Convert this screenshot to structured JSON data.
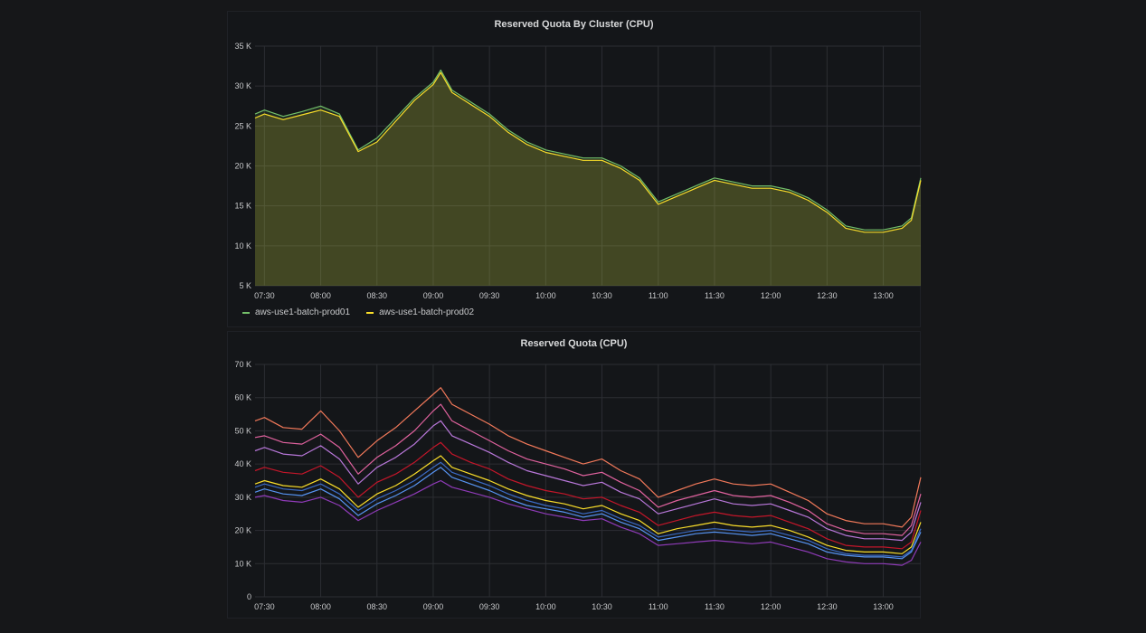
{
  "chart_data": [
    {
      "type": "area",
      "title": "Reserved Quota By Cluster (CPU)",
      "xlabel": "",
      "ylabel": "",
      "x_ticks": [
        "07:30",
        "08:00",
        "08:30",
        "09:00",
        "09:30",
        "10:00",
        "10:30",
        "11:00",
        "11:30",
        "12:00",
        "12:30",
        "13:00"
      ],
      "y_ticks": [
        "5 K",
        "10 K",
        "15 K",
        "20 K",
        "25 K",
        "30 K",
        "35 K"
      ],
      "xlim": [
        "07:25",
        "13:20"
      ],
      "ylim": [
        5000,
        35000
      ],
      "grid": true,
      "legend_position": "bottom-left",
      "x": [
        "07:25",
        "07:30",
        "07:40",
        "07:50",
        "08:00",
        "08:10",
        "08:20",
        "08:30",
        "08:40",
        "08:50",
        "09:00",
        "09:04",
        "09:10",
        "09:20",
        "09:30",
        "09:40",
        "09:50",
        "10:00",
        "10:10",
        "10:20",
        "10:30",
        "10:40",
        "10:50",
        "11:00",
        "11:10",
        "11:20",
        "11:30",
        "11:40",
        "11:50",
        "12:00",
        "12:10",
        "12:20",
        "12:30",
        "12:40",
        "12:50",
        "13:00",
        "13:10",
        "13:15",
        "13:20"
      ],
      "series": [
        {
          "name": "aws-use1-batch-prod01",
          "color": "#73bf69",
          "values": [
            26500,
            27000,
            26200,
            26800,
            27500,
            26500,
            22000,
            23500,
            26000,
            28500,
            30500,
            32000,
            29500,
            28000,
            26500,
            24500,
            23000,
            22000,
            21500,
            21000,
            21000,
            20000,
            18500,
            15500,
            16500,
            17500,
            18500,
            18000,
            17500,
            17500,
            17000,
            16000,
            14500,
            12500,
            12000,
            12000,
            12500,
            13500,
            18500
          ]
        },
        {
          "name": "aws-use1-batch-prod02",
          "color": "#fade2a",
          "values": [
            26000,
            26500,
            25800,
            26400,
            27000,
            26200,
            21800,
            23000,
            25600,
            28200,
            30200,
            31700,
            29200,
            27700,
            26200,
            24200,
            22700,
            21700,
            21200,
            20700,
            20700,
            19700,
            18200,
            15200,
            16200,
            17200,
            18200,
            17700,
            17200,
            17200,
            16700,
            15700,
            14200,
            12200,
            11700,
            11700,
            12200,
            13200,
            18200
          ]
        }
      ]
    },
    {
      "type": "line",
      "title": "Reserved Quota (CPU)",
      "xlabel": "",
      "ylabel": "",
      "x_ticks": [
        "07:30",
        "08:00",
        "08:30",
        "09:00",
        "09:30",
        "10:00",
        "10:30",
        "11:00",
        "11:30",
        "12:00",
        "12:30",
        "13:00"
      ],
      "y_ticks": [
        "0",
        "10 K",
        "20 K",
        "30 K",
        "40 K",
        "50 K",
        "60 K",
        "70 K"
      ],
      "xlim": [
        "07:25",
        "13:20"
      ],
      "ylim": [
        0,
        70000
      ],
      "grid": true,
      "legend_position": "none",
      "x": [
        "07:25",
        "07:30",
        "07:40",
        "07:50",
        "08:00",
        "08:10",
        "08:20",
        "08:30",
        "08:40",
        "08:50",
        "09:00",
        "09:04",
        "09:10",
        "09:20",
        "09:30",
        "09:40",
        "09:50",
        "10:00",
        "10:10",
        "10:20",
        "10:30",
        "10:40",
        "10:50",
        "11:00",
        "11:10",
        "11:20",
        "11:30",
        "11:40",
        "11:50",
        "12:00",
        "12:10",
        "12:20",
        "12:30",
        "12:40",
        "12:50",
        "13:00",
        "13:10",
        "13:15",
        "13:20"
      ],
      "series": [
        {
          "color": "#f2795a",
          "values": [
            53000,
            54000,
            51000,
            50500,
            56000,
            50000,
            42000,
            47000,
            51000,
            56000,
            61000,
            63000,
            58000,
            55000,
            52000,
            48500,
            46000,
            44000,
            42000,
            40000,
            41500,
            38000,
            35500,
            30000,
            32000,
            34000,
            35500,
            34000,
            33500,
            34000,
            31500,
            29000,
            25000,
            23000,
            22000,
            22000,
            21000,
            24000,
            36000
          ]
        },
        {
          "color": "#e0629e",
          "values": [
            48000,
            48500,
            46500,
            46000,
            49000,
            45000,
            37000,
            42000,
            45500,
            50000,
            56000,
            58000,
            53000,
            50000,
            47000,
            44000,
            41500,
            40000,
            38500,
            36500,
            37500,
            34500,
            32000,
            27000,
            29000,
            30500,
            32000,
            30500,
            30000,
            30500,
            28500,
            26000,
            22000,
            20000,
            19000,
            19000,
            18500,
            21500,
            31000
          ]
        },
        {
          "color": "#b877d9",
          "values": [
            44000,
            45000,
            43000,
            42500,
            45500,
            41500,
            34000,
            39000,
            42000,
            46000,
            51500,
            53000,
            48500,
            46000,
            43500,
            40500,
            38000,
            36500,
            35000,
            33500,
            34500,
            31500,
            29500,
            25000,
            26500,
            28000,
            29500,
            28000,
            27500,
            28000,
            26000,
            24000,
            20500,
            18500,
            17500,
            17500,
            17000,
            19500,
            28500
          ]
        },
        {
          "color": "#c4162a",
          "values": [
            38000,
            39000,
            37500,
            37000,
            39500,
            36000,
            30000,
            34500,
            37000,
            40500,
            45000,
            46500,
            43000,
            40500,
            38500,
            35500,
            33500,
            32000,
            31000,
            29500,
            30000,
            27500,
            25500,
            21500,
            23000,
            24500,
            25500,
            24500,
            24000,
            24500,
            22500,
            20500,
            17500,
            15500,
            15000,
            15000,
            14500,
            16500,
            26000
          ]
        },
        {
          "color": "#fade2a",
          "values": [
            34000,
            35000,
            33500,
            33000,
            35500,
            32500,
            27000,
            31000,
            33500,
            37000,
            41000,
            42500,
            39000,
            37000,
            35000,
            32500,
            30500,
            29000,
            28000,
            26500,
            27500,
            25000,
            23000,
            19000,
            20500,
            21500,
            22500,
            21500,
            21000,
            21500,
            20000,
            18000,
            15500,
            14000,
            13500,
            13500,
            13000,
            15000,
            22500
          ]
        },
        {
          "color": "#5794f2",
          "values": [
            31500,
            32500,
            31000,
            30500,
            32500,
            29500,
            24500,
            28000,
            30500,
            33500,
            37500,
            39000,
            36000,
            34000,
            32000,
            29500,
            27500,
            26500,
            25500,
            24000,
            25000,
            22500,
            20500,
            17000,
            18000,
            19000,
            19500,
            19000,
            18500,
            19000,
            17500,
            16000,
            13500,
            12500,
            12000,
            12000,
            11500,
            13500,
            19500
          ]
        },
        {
          "color": "#8f3bb8",
          "values": [
            30000,
            30500,
            29000,
            28500,
            30000,
            27500,
            23000,
            26000,
            28500,
            31000,
            34000,
            35000,
            33000,
            31500,
            30000,
            28000,
            26500,
            25000,
            24000,
            23000,
            23500,
            21000,
            19000,
            15500,
            16000,
            16500,
            17000,
            16500,
            16000,
            16500,
            15000,
            13500,
            11500,
            10500,
            10000,
            10000,
            9500,
            11000,
            16500
          ]
        },
        {
          "color": "#3b6bc4",
          "values": [
            33000,
            34000,
            32500,
            32000,
            34000,
            31000,
            26000,
            29500,
            32000,
            35000,
            39000,
            40500,
            37500,
            35500,
            33500,
            31000,
            29000,
            27500,
            26500,
            25000,
            26000,
            23500,
            21500,
            18000,
            19000,
            20000,
            20500,
            20000,
            19500,
            20000,
            18500,
            17000,
            14500,
            13000,
            12500,
            12500,
            12000,
            14000,
            20500
          ]
        }
      ]
    }
  ]
}
